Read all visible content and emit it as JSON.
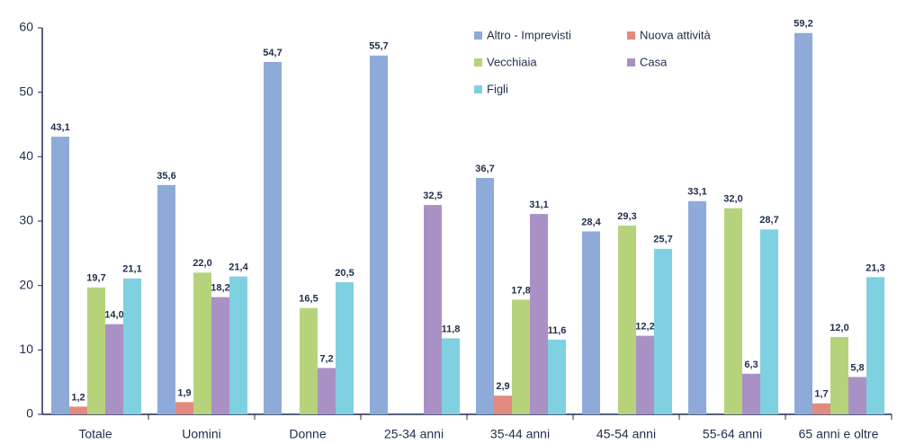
{
  "chart_data": {
    "type": "bar",
    "categories": [
      "Totale",
      "Uomini",
      "Donne",
      "25-34 anni",
      "35-44 anni",
      "45-54 anni",
      "55-64 anni",
      "65 anni e oltre"
    ],
    "series": [
      {
        "name": "Altro - Imprevisti",
        "color": "#8eaad8",
        "values": [
          43.1,
          35.6,
          54.7,
          55.7,
          36.7,
          28.4,
          33.1,
          59.2
        ],
        "value_labels": [
          "43,1",
          "35,6",
          "54,7",
          "55,7",
          "36,7",
          "28,4",
          "33,1",
          "59,2"
        ]
      },
      {
        "name": "Nuova attività",
        "color": "#e08a80",
        "values": [
          1.2,
          1.9,
          null,
          null,
          2.9,
          null,
          null,
          1.7
        ],
        "value_labels": [
          "1,2",
          "1,9",
          null,
          null,
          "2,9",
          null,
          null,
          "1,7"
        ]
      },
      {
        "name": "Vecchiaia",
        "color": "#b6d37c",
        "values": [
          19.7,
          22.0,
          16.5,
          null,
          17.8,
          29.3,
          32.0,
          12.0
        ],
        "value_labels": [
          "19,7",
          "22,0",
          "16,5",
          null,
          "17,8",
          "29,3",
          "32,0",
          "12,0"
        ]
      },
      {
        "name": "Casa",
        "color": "#a991c6",
        "values": [
          14.0,
          18.2,
          7.2,
          32.5,
          31.1,
          12.2,
          6.3,
          5.8
        ],
        "value_labels": [
          "14,0",
          "18,2",
          "7,2",
          "32,5",
          "31,1",
          "12,2",
          "6,3",
          "5,8"
        ]
      },
      {
        "name": "Figli",
        "color": "#7fd0e0",
        "values": [
          21.1,
          21.4,
          20.5,
          11.8,
          11.6,
          25.7,
          28.7,
          21.3
        ],
        "value_labels": [
          "21,1",
          "21,4",
          "20,5",
          "11,8",
          "11,6",
          "25,7",
          "28,7",
          "21,3"
        ]
      }
    ],
    "ylim": [
      0,
      60
    ],
    "yticks": [
      0,
      10,
      20,
      30,
      40,
      50,
      60
    ],
    "grid": false
  }
}
